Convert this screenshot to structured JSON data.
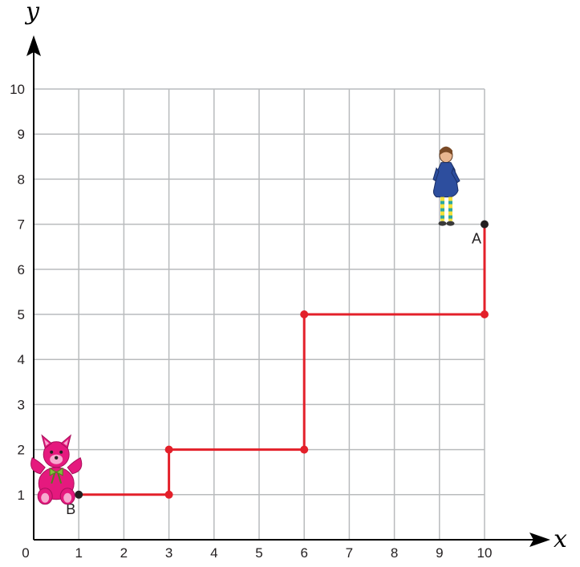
{
  "chart_data": {
    "type": "line",
    "x_axis_label": "x",
    "y_axis_label": "y",
    "origin_label": "0",
    "x_ticks": [
      "1",
      "2",
      "3",
      "4",
      "5",
      "6",
      "7",
      "8",
      "9",
      "10"
    ],
    "y_ticks": [
      "1",
      "2",
      "3",
      "4",
      "5",
      "6",
      "7",
      "8",
      "9",
      "10"
    ],
    "xlim": [
      0,
      10
    ],
    "ylim": [
      0,
      10
    ],
    "grid": true,
    "path": {
      "color": "#e3202a",
      "points": [
        [
          1,
          1
        ],
        [
          3,
          1
        ],
        [
          3,
          2
        ],
        [
          6,
          2
        ],
        [
          6,
          5
        ],
        [
          10,
          5
        ],
        [
          10,
          7
        ]
      ]
    },
    "turn_points": [
      [
        3,
        1
      ],
      [
        3,
        2
      ],
      [
        6,
        2
      ],
      [
        6,
        5
      ],
      [
        10,
        5
      ]
    ],
    "labeled_points": [
      {
        "label": "A",
        "x": 10,
        "y": 7
      },
      {
        "label": "B",
        "x": 1,
        "y": 1
      }
    ]
  },
  "pictures": {
    "girl": {
      "icon": "girl-icon",
      "near": "A"
    },
    "teddy": {
      "icon": "teddy-bear-icon",
      "near": "B"
    }
  },
  "colors": {
    "grid": "#b9bbbd",
    "axis": "#000000",
    "path": "#e3202a",
    "endpoint": "#231f20"
  }
}
